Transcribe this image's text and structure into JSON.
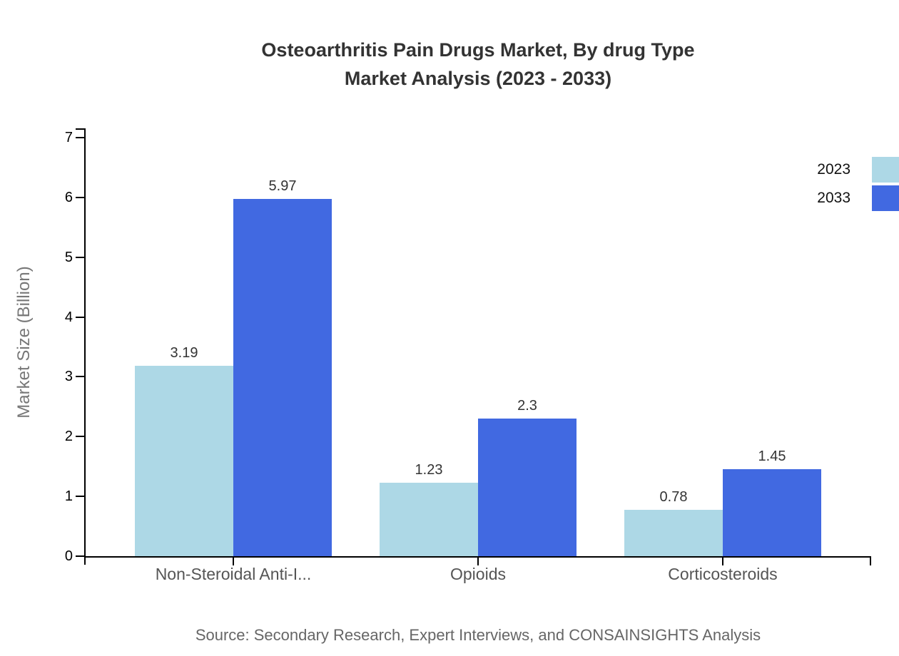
{
  "title": {
    "line1": "Osteoarthritis Pain Drugs Market, By drug Type",
    "line2": "Market Analysis (2023 - 2033)"
  },
  "ylabel": "Market Size (Billion)",
  "source": "Source: Secondary Research, Expert Interviews, and CONSAINSIGHTS Analysis",
  "legend": [
    {
      "label": "2023",
      "color": "#ADD8E6"
    },
    {
      "label": "2033",
      "color": "#4169E1"
    }
  ],
  "colors": {
    "series_2023": "#ADD8E6",
    "series_2033": "#4169E1",
    "axis": "#000000",
    "title_text": "#333333",
    "category_text": "#555555",
    "muted_text": "#777777"
  },
  "chart_data": {
    "type": "bar",
    "title": "Osteoarthritis Pain Drugs Market, By drug Type Market Analysis (2023 - 2033)",
    "categories": [
      "Non-Steroidal Anti-I...",
      "Opioids",
      "Corticosteroids"
    ],
    "series": [
      {
        "name": "2023",
        "color": "#ADD8E6",
        "values": [
          3.19,
          1.23,
          0.78
        ]
      },
      {
        "name": "2033",
        "color": "#4169E1",
        "values": [
          5.97,
          2.3,
          1.45
        ]
      }
    ],
    "value_labels": [
      [
        "3.19",
        "1.23",
        "0.78"
      ],
      [
        "5.97",
        "2.3",
        "1.45"
      ]
    ],
    "xlabel": "",
    "ylabel": "Market Size (Billion)",
    "ylim": [
      0,
      7
    ],
    "yticks": [
      0,
      1,
      2,
      3,
      4,
      5,
      6,
      7
    ],
    "grid": false,
    "legend_position": "top-right",
    "bar_value_labels_shown": true
  }
}
